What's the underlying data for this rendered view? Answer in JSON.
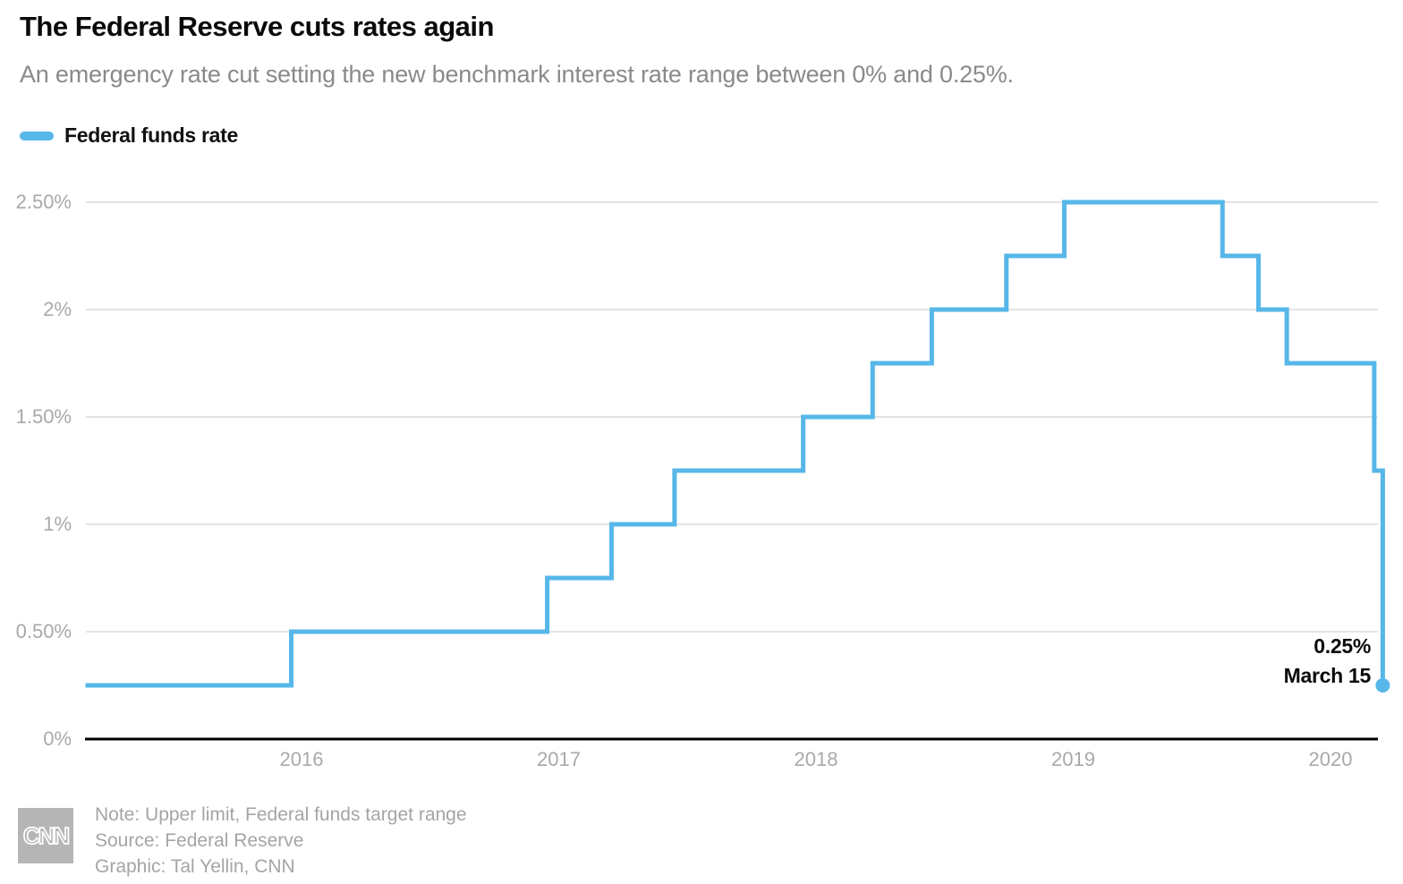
{
  "header": {
    "title": "The Federal Reserve cuts rates again",
    "subtitle": "An emergency rate cut setting the new benchmark interest rate range between 0% and 0.25%."
  },
  "legend": {
    "label": "Federal funds rate"
  },
  "colors": {
    "line": "#56b7e8",
    "grid": "#e4e4e4",
    "axis": "#000000",
    "tick_label": "#a9a9a9",
    "subtitle_text": "#8a8a8a",
    "footer_text": "#a5a5a5",
    "logo_background": "#b5b5b5"
  },
  "chart_data": {
    "type": "line",
    "step": true,
    "title": "The Federal Reserve cuts rates again",
    "xlabel": "",
    "ylabel": "",
    "grid": "horizontal",
    "legend_position": "top-left",
    "xlim": [
      2015.16,
      2020.21
    ],
    "ylim": [
      0,
      2.5
    ],
    "xticks": [
      {
        "label": "2016",
        "value": 2016
      },
      {
        "label": "2017",
        "value": 2017
      },
      {
        "label": "2018",
        "value": 2018
      },
      {
        "label": "2019",
        "value": 2019
      },
      {
        "label": "2020",
        "value": 2020
      }
    ],
    "yticks": [
      {
        "label": "2.50%",
        "value": 2.5
      },
      {
        "label": "2%",
        "value": 2.0
      },
      {
        "label": "1.50%",
        "value": 1.5
      },
      {
        "label": "1%",
        "value": 1.0
      },
      {
        "label": "0.50%",
        "value": 0.5
      },
      {
        "label": "0%",
        "value": 0
      }
    ],
    "series": [
      {
        "name": "Federal funds rate",
        "color": "#56b7e8",
        "points": [
          {
            "x": 2015.16,
            "rate": 0.25
          },
          {
            "x": 2015.96,
            "rate": 0.5
          },
          {
            "x": 2016.955,
            "rate": 0.75
          },
          {
            "x": 2017.205,
            "rate": 1.0
          },
          {
            "x": 2017.45,
            "rate": 1.25
          },
          {
            "x": 2017.95,
            "rate": 1.5
          },
          {
            "x": 2018.22,
            "rate": 1.75
          },
          {
            "x": 2018.45,
            "rate": 2.0
          },
          {
            "x": 2018.74,
            "rate": 2.25
          },
          {
            "x": 2018.965,
            "rate": 2.5
          },
          {
            "x": 2019.58,
            "rate": 2.25
          },
          {
            "x": 2019.72,
            "rate": 2.0
          },
          {
            "x": 2019.83,
            "rate": 1.75
          },
          {
            "x": 2020.17,
            "rate": 1.25
          },
          {
            "x": 2020.203,
            "rate": 0.25
          }
        ]
      }
    ],
    "end_annotation": {
      "value_label": "0.25%",
      "date_label": "March 15",
      "x": 2020.203,
      "rate": 0.25
    }
  },
  "annotation": {
    "value": "0.25%",
    "date": "March 15"
  },
  "footer": {
    "logo": "CNN",
    "lines": [
      "Note: Upper limit, Federal funds target range",
      "Source: Federal Reserve",
      "Graphic: Tal Yellin, CNN"
    ]
  }
}
